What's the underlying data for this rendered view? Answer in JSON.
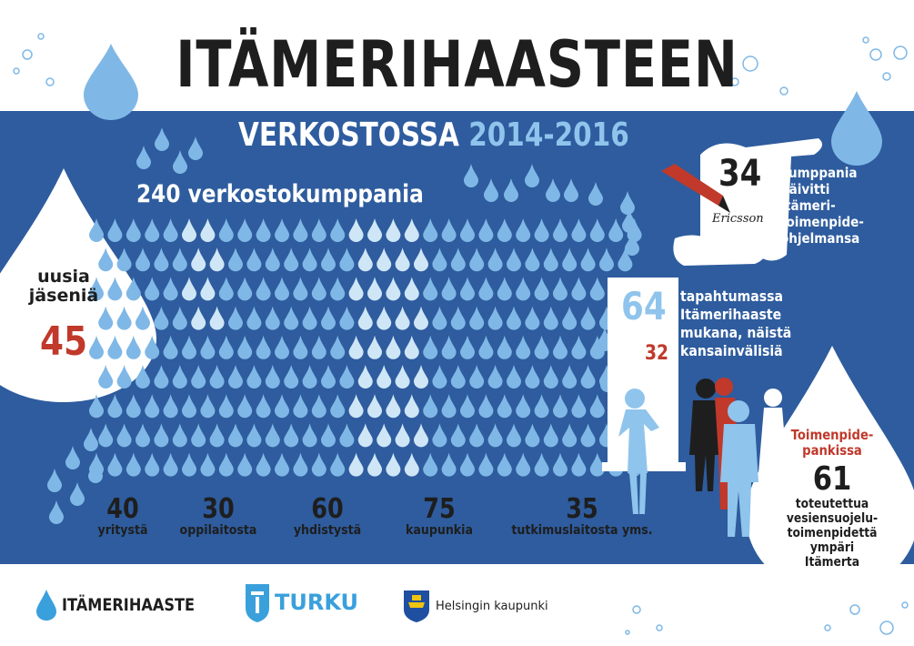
{
  "title": "ITÄMERIHAASTEEN",
  "subtitle": {
    "prefix": "VERKOSTOSSA",
    "years": "2014-2016"
  },
  "total_partners": "240 verkostokumppania",
  "new_members": {
    "label_line1": "uusia",
    "label_line2": "jäseniä",
    "value": "45"
  },
  "categories": [
    {
      "value": "40",
      "label": "yritystä"
    },
    {
      "value": "30",
      "label": "oppilaitosta"
    },
    {
      "value": "60",
      "label": "yhdistystä"
    },
    {
      "value": "75",
      "label": "kaupunkia"
    },
    {
      "value": "35",
      "label": "tutkimuslaitosta yms."
    }
  ],
  "programme": {
    "value": "34",
    "lines": [
      "kumppania",
      "päivitti",
      "Itämeri-",
      "toimenpide-",
      "ohjelmansa"
    ],
    "scroll_signature": "Ericsson"
  },
  "events": {
    "value": "64",
    "lines": [
      "tapahtumassa",
      "Itämerihaaste",
      "mukana, näistä",
      "kansainvälisiä"
    ],
    "international": "32"
  },
  "action_bank": {
    "heading_line1": "Toimenpide-",
    "heading_line2": "pankissa",
    "value": "61",
    "lines": [
      "toteutettua",
      "vesiensuojelu-",
      "toimenpidettä",
      "ympäri",
      "Itämerta"
    ]
  },
  "logos": {
    "itamerihaaste": "ITÄMERIHAASTE",
    "turku": "TURKU",
    "helsinki": "Helsingin kaupunki"
  },
  "colors": {
    "band": "#2e5c9e",
    "drop_light": "#7fb8e6",
    "drop_pale": "#cfe6f7",
    "accent_red": "#c0392b",
    "text_dark": "#1e1e1e"
  }
}
